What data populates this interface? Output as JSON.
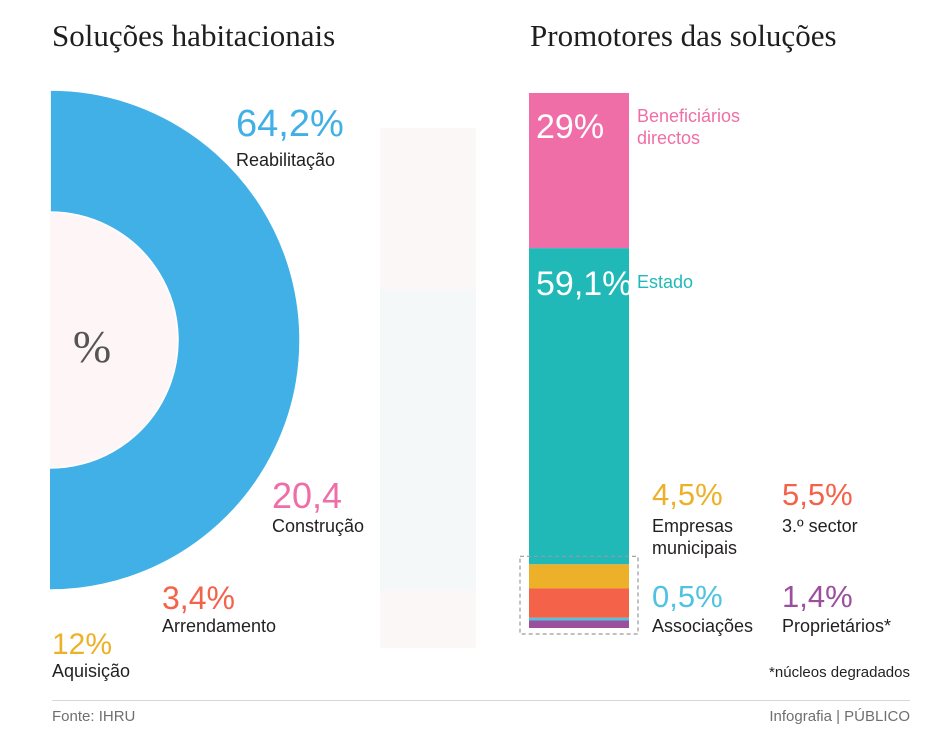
{
  "titles": {
    "left": "Soluções habitacionais",
    "right": "Promotores das soluções"
  },
  "center_symbol": "%",
  "footer": {
    "source": "Fonte: IHRU",
    "credit": "Infografia | PÚBLICO",
    "note": "*núcleos degradados"
  },
  "colors": {
    "blue": "#40b0e6",
    "pink": "#ef6ea7",
    "orange_red": "#f4624a",
    "yellow": "#ecb128",
    "teal": "#21b8b8",
    "light_blue": "#4fc3df",
    "purple": "#9c4f9c"
  },
  "chart_data": [
    {
      "type": "pie",
      "title": "Soluções habitacionais",
      "slices": [
        {
          "label": "Reabilitação",
          "value": 64.2,
          "value_text": "64,2%",
          "color": "#40b0e6"
        },
        {
          "label": "Construção",
          "value": 20.4,
          "value_text": "20,4",
          "color": "#ef6ea7"
        },
        {
          "label": "Arrendamento",
          "value": 3.4,
          "value_text": "3,4%",
          "color": "#f4624a"
        },
        {
          "label": "Aquisição",
          "value": 12,
          "value_text": "12%",
          "color": "#ecb128"
        }
      ]
    },
    {
      "type": "bar",
      "title": "Promotores das soluções",
      "stacked": true,
      "series": [
        {
          "name": "Beneficiários directos",
          "value": 29,
          "value_text": "29%",
          "color": "#ef6ea7"
        },
        {
          "name": "Estado",
          "value": 59.1,
          "value_text": "59,1%",
          "color": "#21b8b8"
        },
        {
          "name": "Empresas municipais",
          "value": 4.5,
          "value_text": "4,5%",
          "color": "#ecb128"
        },
        {
          "name": "3.º sector",
          "value": 5.5,
          "value_text": "5,5%",
          "color": "#f4624a"
        },
        {
          "name": "Associações",
          "value": 0.5,
          "value_text": "0,5%",
          "color": "#4fc3df"
        },
        {
          "name": "Proprietários*",
          "value": 1.4,
          "value_text": "1,4%",
          "color": "#9c4f9c"
        }
      ]
    }
  ]
}
